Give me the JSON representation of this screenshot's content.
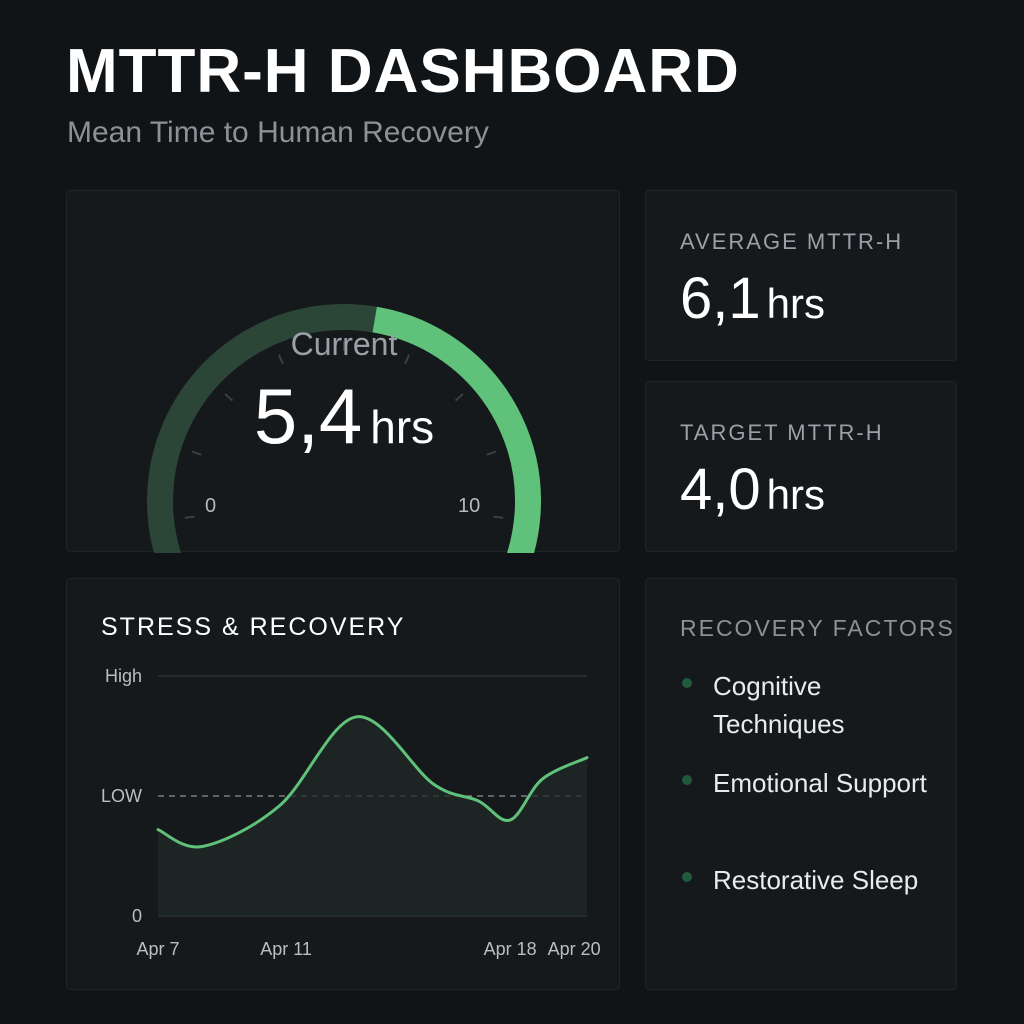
{
  "header": {
    "title": "MTTR-H DASHBOARD",
    "subtitle": "Mean Time to Human Recovery"
  },
  "gauge": {
    "label": "Current",
    "value": "5,4",
    "unit": "hrs",
    "min": "0",
    "max": "10",
    "min_value": 0,
    "max_value": 10,
    "current_value": 5.4
  },
  "average": {
    "label": "AVERAGE MTTR-H",
    "value": "6,1",
    "unit": "hrs"
  },
  "target": {
    "label": "TARGET MTTR-H",
    "value": "4,0",
    "unit": "hrs"
  },
  "colors": {
    "accent": "#5fc17a",
    "gauge_track": "#2b4537",
    "dot": "#1f5a3d"
  },
  "chart_data": {
    "type": "line",
    "title": "STRESS & RECOVERY",
    "y_tick_labels": [
      "0",
      "LOW",
      "High"
    ],
    "y_tick_values": [
      0,
      1,
      2
    ],
    "ylim": [
      0,
      2
    ],
    "reference_line": {
      "value": 1,
      "style": "dashed"
    },
    "x_tick_labels": [
      "Apr 7",
      "Apr 11",
      "Apr 18",
      "Apr 20"
    ],
    "x_tick_positions": [
      7,
      11,
      18,
      20
    ],
    "xlim": [
      7,
      20.4
    ],
    "series": [
      {
        "x": [
          7,
          8.4,
          10.8,
          13.2,
          15.6,
          17.0,
          18.0,
          19.0,
          20.4
        ],
        "y": [
          0.72,
          0.58,
          0.92,
          1.66,
          1.1,
          0.96,
          0.8,
          1.14,
          1.32
        ]
      }
    ]
  },
  "factors": {
    "title": "RECOVERY FACTORS",
    "items": [
      {
        "label": "Cognitive Techniques"
      },
      {
        "label": "Emotional Support"
      },
      {
        "label": "Restorative Sleep"
      }
    ]
  }
}
